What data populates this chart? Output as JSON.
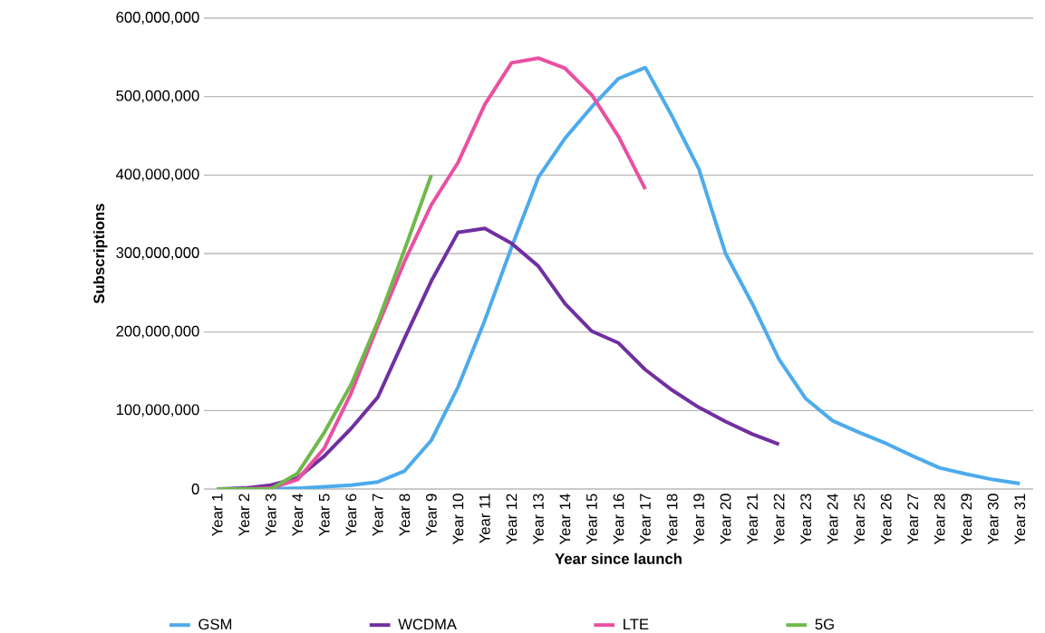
{
  "chart_data": {
    "type": "line",
    "xlabel": "Year since launch",
    "ylabel": "Subscriptions",
    "categories": [
      "Year 1",
      "Year 2",
      "Year 3",
      "Year 4",
      "Year 5",
      "Year 6",
      "Year 7",
      "Year 8",
      "Year 9",
      "Year 10",
      "Year 11",
      "Year 12",
      "Year 13",
      "Year 14",
      "Year 15",
      "Year 16",
      "Year 17",
      "Year 18",
      "Year 19",
      "Year 20",
      "Year 21",
      "Year 22",
      "Year 23",
      "Year 24",
      "Year 25",
      "Year 26",
      "Year 27",
      "Year 28",
      "Year 29",
      "Year 30",
      "Year 31"
    ],
    "series": [
      {
        "name": "GSM",
        "color": "#4dabec",
        "values": [
          0,
          0,
          0,
          1000000,
          3000000,
          5000000,
          9000000,
          23000000,
          62000000,
          130000000,
          215000000,
          308000000,
          397000000,
          447000000,
          487000000,
          523000000,
          537000000,
          475000000,
          408000000,
          300000000,
          236000000,
          165000000,
          115000000,
          87000000,
          72000000,
          58000000,
          42000000,
          27000000,
          19000000,
          12000000,
          7000000
        ]
      },
      {
        "name": "WCDMA",
        "color": "#7030a0",
        "values": [
          0,
          1000000,
          5000000,
          14000000,
          42000000,
          77000000,
          117000000,
          192000000,
          265000000,
          327000000,
          332000000,
          313000000,
          284000000,
          236000000,
          201000000,
          186000000,
          152000000,
          126000000,
          104000000,
          86000000,
          70000000,
          57000000,
          null,
          null,
          null,
          null,
          null,
          null,
          null,
          null,
          null
        ]
      },
      {
        "name": "LTE",
        "color": "#ea4fa2",
        "values": [
          0,
          0,
          1000000,
          12000000,
          52000000,
          122000000,
          208000000,
          290000000,
          362000000,
          416000000,
          490000000,
          543000000,
          549000000,
          536000000,
          502000000,
          449000000,
          382000000,
          null,
          null,
          null,
          null,
          null,
          null,
          null,
          null,
          null,
          null,
          null,
          null,
          null,
          null
        ]
      },
      {
        "name": "5G",
        "color": "#70b84a",
        "values": [
          0,
          0,
          0,
          20000000,
          72000000,
          133000000,
          213000000,
          305000000,
          400000000,
          null,
          null,
          null,
          null,
          null,
          null,
          null,
          null,
          null,
          null,
          null,
          null,
          null,
          null,
          null,
          null,
          null,
          null,
          null,
          null,
          null,
          null
        ]
      }
    ],
    "ylim": [
      0,
      600000000
    ],
    "yticks": [
      {
        "value": 0,
        "label": "0"
      },
      {
        "value": 100000000,
        "label": "100,000,000"
      },
      {
        "value": 200000000,
        "label": "200,000,000"
      },
      {
        "value": 300000000,
        "label": "300,000,000"
      },
      {
        "value": 400000000,
        "label": "400,000,000"
      },
      {
        "value": 500000000,
        "label": "500,000,000"
      },
      {
        "value": 600000000,
        "label": "600,000,000"
      }
    ],
    "grid": "y",
    "legend": "bottom",
    "marker": "none",
    "line_style": "solid"
  }
}
